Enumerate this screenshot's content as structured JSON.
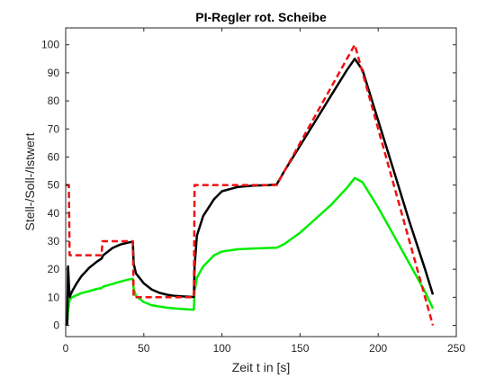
{
  "chart_data": {
    "type": "line",
    "title": "PI-Regler rot. Scheibe",
    "xlabel": "Zeit t in [s]",
    "ylabel": "Stell-/Soll-/Istwert",
    "xlim": [
      0,
      250
    ],
    "ylim": [
      -4,
      106
    ],
    "xticks": [
      0,
      50,
      100,
      150,
      200,
      250
    ],
    "yticks": [
      0,
      10,
      20,
      30,
      40,
      50,
      60,
      70,
      80,
      90,
      100
    ],
    "grid": false,
    "legend": "none",
    "series": [
      {
        "color": "#00ee00",
        "style": "solid",
        "x": [
          0,
          1,
          1.5,
          2.5,
          4,
          6,
          10,
          15,
          20,
          23,
          24,
          30,
          35,
          40,
          43,
          43.5,
          45,
          50,
          55,
          60,
          65,
          70,
          75,
          82,
          82.5,
          84,
          88,
          95,
          100,
          110,
          120,
          130,
          135,
          140,
          150,
          160,
          170,
          180,
          185,
          190,
          200,
          210,
          220,
          230,
          235
        ],
        "values": [
          0,
          1,
          5,
          9,
          10,
          10.5,
          11.5,
          12.2,
          13,
          13.3,
          13.8,
          14.8,
          15.6,
          16.3,
          16.6,
          13,
          10.5,
          8.3,
          7.2,
          6.7,
          6.3,
          6.0,
          5.8,
          5.6,
          12,
          17,
          21,
          25,
          26.3,
          27.1,
          27.4,
          27.6,
          27.7,
          29,
          33,
          38,
          43,
          49,
          52.5,
          51,
          42,
          32,
          22,
          12,
          6
        ]
      },
      {
        "color": "#000000",
        "style": "solid",
        "x": [
          0,
          1,
          1.5,
          2.5,
          4,
          7,
          10,
          15,
          20,
          23,
          24,
          30,
          35,
          40,
          43,
          43.5,
          45,
          50,
          55,
          60,
          65,
          70,
          75,
          82,
          82.5,
          84,
          88,
          95,
          100,
          110,
          120,
          130,
          135,
          140,
          150,
          160,
          170,
          180,
          185,
          190,
          200,
          210,
          220,
          230,
          235
        ],
        "values": [
          0,
          0.5,
          21,
          10,
          12,
          15,
          17.5,
          20.5,
          22.7,
          23.8,
          25,
          27.6,
          28.8,
          29.5,
          29.8,
          22,
          18.5,
          15,
          12.8,
          11.6,
          10.9,
          10.5,
          10.3,
          10.1,
          21,
          32,
          39,
          45,
          47.8,
          49.3,
          49.8,
          50,
          50.2,
          55,
          64,
          73,
          82,
          91,
          95,
          91,
          73,
          55,
          37,
          20,
          11
        ]
      },
      {
        "color": "#ee1111",
        "style": "dashed",
        "x": [
          0,
          2,
          2.5,
          23,
          23.5,
          43,
          43.5,
          82,
          82.5,
          135,
          185,
          235
        ],
        "values": [
          50,
          50,
          25,
          25,
          30,
          30,
          10,
          10,
          50,
          50,
          100,
          0
        ]
      }
    ]
  }
}
